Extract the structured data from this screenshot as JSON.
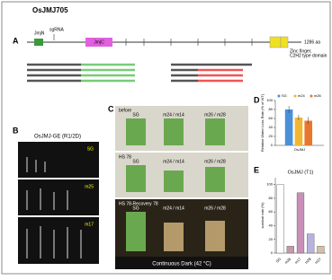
{
  "title": "OsJMJ705",
  "panel_labels": [
    "A",
    "B",
    "C",
    "D",
    "E"
  ],
  "gene": {
    "jmjn": "JmjN",
    "sgrna": "sgRNA",
    "jmjc": "JmjC",
    "length": "1286 aa",
    "zinc": "Zinc finger,",
    "zinc2": "C2H2 type domain"
  },
  "panel_b": {
    "title": "OsJMJ-GE (R1/2D)",
    "rows": [
      "SG",
      "m25",
      "m17"
    ]
  },
  "panel_c": {
    "rows": [
      "before",
      "HS 78",
      "HS 78-Recovery 78"
    ],
    "cols": [
      "SG",
      "m24 / m14",
      "m26 / m28"
    ],
    "footer": "Continuous Dark (42 °C)"
  },
  "chart_data": [
    {
      "type": "bar",
      "categories": [
        "OsJMJ"
      ],
      "ylabel": "Relative Water Loss Rate (% of WT)",
      "series": [
        {
          "name": "SG",
          "color": "#4a90d9",
          "values": [
            80
          ],
          "errors": [
            8
          ]
        },
        {
          "name": "m24",
          "color": "#f2b632",
          "values": [
            62
          ],
          "errors": [
            6
          ]
        },
        {
          "name": "m26",
          "color": "#e8772e",
          "values": [
            55
          ],
          "errors": [
            8
          ]
        }
      ],
      "ylim": [
        0,
        100
      ],
      "yticks": [
        0,
        20,
        40,
        60,
        80,
        100
      ]
    },
    {
      "type": "bar",
      "title": "OsJMJ (T1)",
      "ylabel": "survival rate (%)",
      "categories": [
        "SG",
        "m26",
        "m17",
        "m28",
        "m27"
      ],
      "values": [
        100,
        10,
        88,
        28,
        10
      ],
      "colors": [
        "#ffffff",
        "#c49aa8",
        "#c98fb8",
        "#b9b2de",
        "#d4bfa6"
      ],
      "ylim": [
        0,
        110
      ],
      "yticks": [
        0,
        20,
        40,
        60,
        80,
        100
      ]
    }
  ]
}
